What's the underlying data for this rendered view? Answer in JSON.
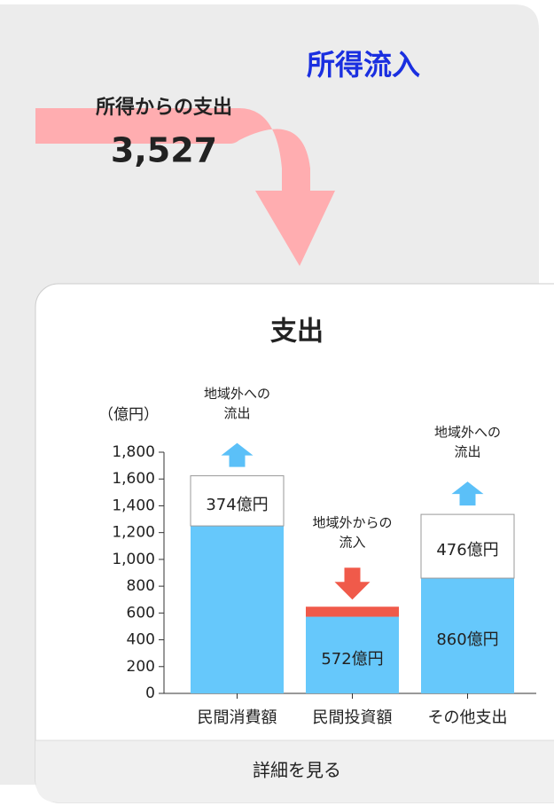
{
  "header": {
    "title": "所得流入",
    "flow_label": "所得からの支出",
    "flow_value": "3,527"
  },
  "card": {
    "title": "支出",
    "footer": "詳細を見る"
  },
  "chart_data": {
    "type": "stacked_bar",
    "y_unit": "（億円）",
    "categories": [
      "民間消費額",
      "民間投資額",
      "その他支出"
    ],
    "series": [
      {
        "color": "#66c8fb",
        "values": [
          1250,
          572,
          860
        ],
        "value_labels": [
          null,
          "572億円",
          "860億円"
        ]
      },
      {
        "color": "#ffffff",
        "values": [
          374,
          null,
          476
        ],
        "value_labels": [
          "374億円",
          null,
          "476億円"
        ]
      },
      {
        "color": "#f05a4a",
        "values": [
          null,
          75,
          null
        ]
      }
    ],
    "annotations": [
      [
        "地域外への",
        "流出"
      ],
      [
        "地域外からの",
        "流入"
      ],
      [
        "地域外への",
        "流出"
      ]
    ],
    "ylim": [
      0,
      1800
    ],
    "yticks": [
      0,
      200,
      400,
      600,
      800,
      {
        "value": 1000,
        "label": "1,000"
      },
      {
        "value": 1200,
        "label": "1,200"
      },
      {
        "value": 1400,
        "label": "1,400"
      },
      {
        "value": 1600,
        "label": "1,600"
      },
      {
        "value": 1800,
        "label": "1,800"
      }
    ]
  }
}
